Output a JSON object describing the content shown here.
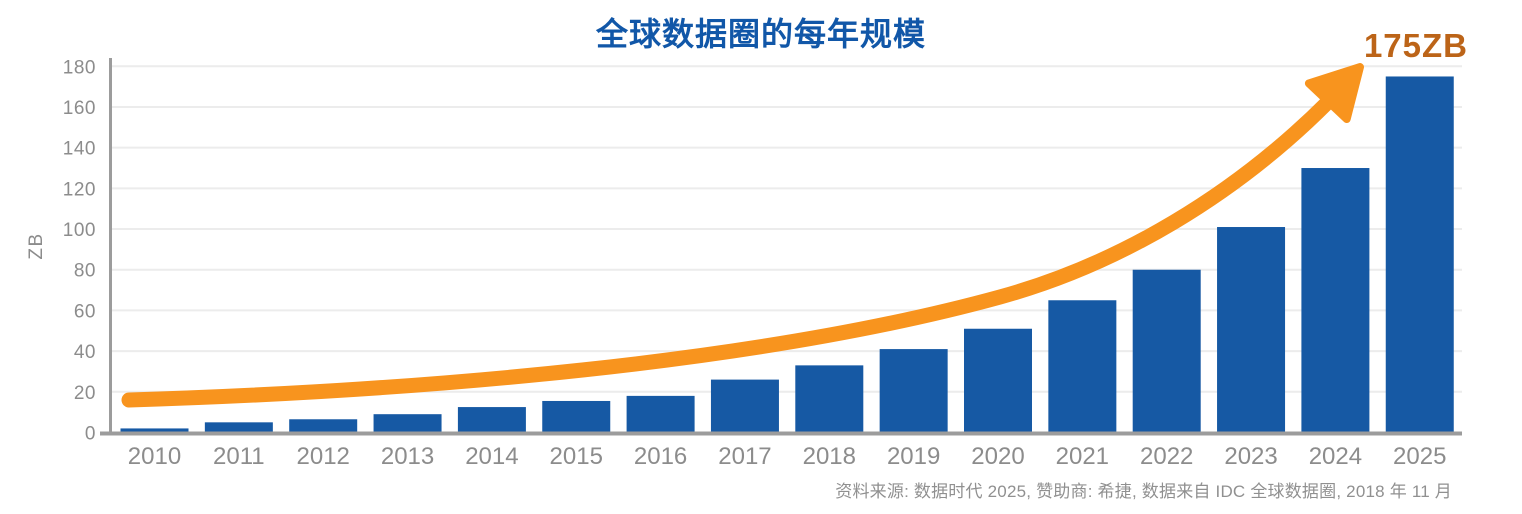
{
  "title": "全球数据圈的每年规模",
  "peak_annotation": "175ZB",
  "source_note": "资料来源: 数据时代 2025, 赞助商: 希捷, 数据来自 IDC 全球数据圈, 2018 年 11 月",
  "chart_data": {
    "type": "bar",
    "title": "全球数据圈的每年规模",
    "xlabel": "",
    "ylabel": "ZB",
    "ylim": [
      0,
      180
    ],
    "ytick_step": 20,
    "grid": true,
    "legend": "none",
    "categories": [
      "2010",
      "2011",
      "2012",
      "2013",
      "2014",
      "2015",
      "2016",
      "2017",
      "2018",
      "2019",
      "2020",
      "2021",
      "2022",
      "2023",
      "2024",
      "2025"
    ],
    "values": [
      2,
      5,
      6.5,
      9,
      12.5,
      15.5,
      18,
      26,
      33,
      41,
      51,
      65,
      80,
      101,
      130,
      175
    ],
    "annotation": {
      "text": "175ZB",
      "target_category": "2025"
    },
    "trend_arrow": {
      "shape": "exponential",
      "start_value": 16,
      "end_value": 175
    },
    "colors": {
      "bar": "#1659A4",
      "trend_arrow": "#F8941E",
      "annotation_text": "#BC6418",
      "title_text": "#1157A8",
      "axis_text": "#8C8C8C",
      "gridline": "#ECECEC",
      "axis_line": "#9C9C9C",
      "source_text": "#909090"
    }
  }
}
